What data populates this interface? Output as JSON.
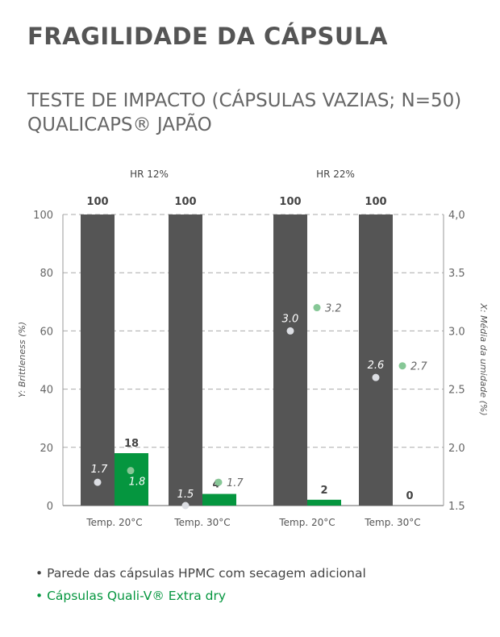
{
  "title": "FRAGILIDADE DA CÁPSULA",
  "subtitle_line1": "TESTE DE IMPACTO (CÁPSULAS VAZIAS; N=50)",
  "subtitle_line2": "QUALICAPS® JAPÃO",
  "chart_data": {
    "type": "bar",
    "groups": [
      "HR 12%",
      "HR 22%"
    ],
    "categories": [
      "Temp. 20°C",
      "Temp. 30°C",
      "Temp. 20°C",
      "Temp. 30°C"
    ],
    "ylabel": "Y: Brittleness (%)",
    "y2label": "X: Média da umidade (%)",
    "ylim": [
      0,
      100
    ],
    "yticks": [
      "0",
      "20",
      "40",
      "60",
      "80",
      "100"
    ],
    "y2lim": [
      1.5,
      4.0
    ],
    "y2ticks": [
      "1.5",
      "2.0",
      "2.5",
      "3.0",
      "3.5",
      "4,0"
    ],
    "grid": true,
    "series": [
      {
        "name": "Parede das cápsulas HPMC com secagem adicional",
        "color": "#555555",
        "values": [
          100,
          100,
          100,
          100
        ],
        "labels": [
          "100",
          "100",
          "100",
          "100"
        ],
        "moisture": [
          1.7,
          1.5,
          3.0,
          2.6
        ],
        "moisture_labels": [
          "1.7",
          "1.5",
          "3.0",
          "2.6"
        ],
        "dot_color": "#dcdee3"
      },
      {
        "name": "Cápsulas Quali-V® Extra dry",
        "color": "#05963f",
        "values": [
          18,
          4,
          2,
          0
        ],
        "labels": [
          "18",
          "4",
          "2",
          "0"
        ],
        "moisture": [
          1.8,
          1.7,
          3.2,
          2.7
        ],
        "moisture_labels": [
          "1.8",
          "1.7",
          "3.2",
          "2.7"
        ],
        "dot_color": "#86c796"
      }
    ]
  },
  "legend": {
    "item1": "• Parede das cápsulas HPMC com secagem adicional",
    "item2": "• Cápsulas Quali-V® Extra dry"
  }
}
